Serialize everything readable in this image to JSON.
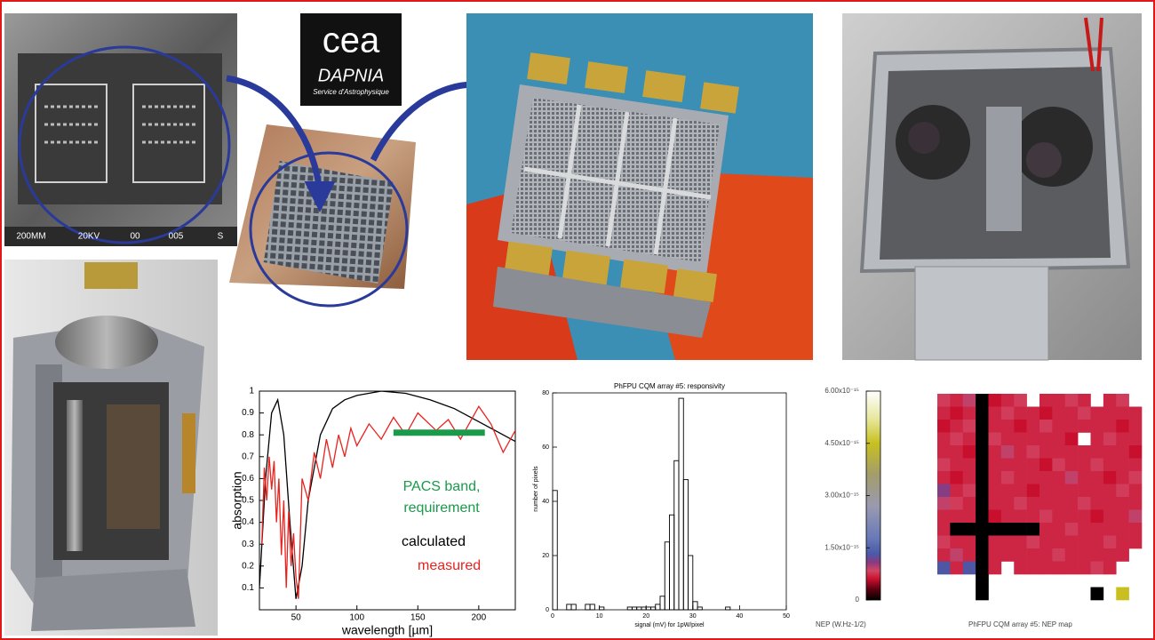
{
  "logo": {
    "mark": "cea",
    "name": "DAPNIA",
    "subtitle": "Service d'Astrophysique"
  },
  "sem_labels": [
    "200MM",
    "20KV",
    "00",
    "005",
    "S"
  ],
  "chart_data": [
    {
      "type": "line",
      "xlabel": "wavelength [µm]",
      "ylabel": "absorption",
      "xlim": [
        20,
        230
      ],
      "ylim": [
        0,
        1
      ],
      "xticks": [
        50,
        100,
        150,
        200
      ],
      "yticks": [
        0.1,
        0.2,
        0.3,
        0.4,
        0.5,
        0.6,
        0.7,
        0.8,
        0.9,
        1
      ],
      "series": [
        {
          "name": "calculated",
          "color": "#000000",
          "x": [
            20,
            25,
            30,
            35,
            40,
            45,
            50,
            55,
            60,
            70,
            80,
            90,
            100,
            120,
            140,
            160,
            180,
            200,
            220,
            230
          ],
          "values": [
            0.1,
            0.6,
            0.9,
            0.96,
            0.8,
            0.4,
            0.05,
            0.2,
            0.5,
            0.8,
            0.92,
            0.96,
            0.98,
            1,
            0.99,
            0.96,
            0.92,
            0.86,
            0.8,
            0.77
          ]
        },
        {
          "name": "measured",
          "color": "#e8231f",
          "x": [
            22,
            24,
            26,
            28,
            30,
            32,
            34,
            36,
            38,
            40,
            42,
            44,
            46,
            48,
            50,
            52,
            55,
            60,
            65,
            70,
            75,
            80,
            85,
            90,
            95,
            100,
            110,
            120,
            130,
            140,
            150,
            165,
            175,
            185,
            200,
            210,
            220,
            230
          ],
          "values": [
            0.3,
            0.65,
            0.5,
            0.7,
            0.55,
            0.68,
            0.4,
            0.6,
            0.25,
            0.5,
            0.1,
            0.45,
            0.2,
            0.35,
            0.15,
            0.05,
            0.6,
            0.5,
            0.72,
            0.6,
            0.78,
            0.65,
            0.8,
            0.7,
            0.83,
            0.75,
            0.85,
            0.78,
            0.88,
            0.8,
            0.9,
            0.82,
            0.87,
            0.78,
            0.93,
            0.85,
            0.72,
            0.82
          ]
        }
      ],
      "band": {
        "x": [
          130,
          205
        ],
        "y": 0.81,
        "color": "#1a9a4a",
        "label": [
          "PACS band,",
          "requirement"
        ]
      }
    },
    {
      "type": "histogram",
      "title": "PhFPU CQM array #5: responsivity",
      "xlabel": "signal (mV) for 1pW/pixel",
      "ylabel": "number of pixels",
      "xlim": [
        0,
        50
      ],
      "ylim": [
        0,
        80
      ],
      "xticks": [
        0,
        10,
        20,
        30,
        40,
        50
      ],
      "yticks": [
        0,
        20,
        40,
        60,
        80
      ],
      "bins": [
        0,
        1,
        2,
        3,
        4,
        5,
        6,
        7,
        8,
        9,
        10,
        11,
        12,
        13,
        14,
        15,
        16,
        17,
        18,
        19,
        20,
        21,
        22,
        23,
        24,
        25,
        26,
        27,
        28,
        29,
        30,
        31,
        32,
        33,
        34,
        35,
        36,
        37,
        38,
        39,
        40
      ],
      "counts": [
        44,
        0,
        0,
        2,
        2,
        0,
        0,
        2,
        2,
        0,
        1,
        0,
        0,
        0,
        0,
        0,
        1,
        1,
        1,
        1,
        1,
        1,
        2,
        5,
        25,
        35,
        55,
        78,
        48,
        20,
        3,
        1,
        0,
        0,
        0,
        0,
        0,
        1,
        0,
        0
      ],
      "color": "#000000"
    },
    {
      "type": "heatmap",
      "title": "PhFPU CQM array #5: NEP map",
      "colorbar_label": "NEP (W.Hz-1/2)",
      "zlim": [
        0,
        6e-15
      ],
      "zticks": [
        0,
        {
          "value": 1.5e-15,
          "label": "1.50x10⁻¹⁵"
        },
        {
          "value": 3e-15,
          "label": "3.00x10⁻¹⁵"
        },
        {
          "value": 4.5e-15,
          "label": "4.50x10⁻¹⁵"
        },
        {
          "value": 6e-15,
          "label": "6.00x10⁻¹⁵"
        }
      ],
      "values": [
        [
          8e-16,
          7e-16,
          9e-16,
          0,
          6e-16,
          7e-16,
          8e-16,
          null,
          7e-16,
          7e-16,
          8e-16,
          7e-16,
          null,
          7e-16,
          8e-16,
          null
        ],
        [
          7e-16,
          6e-16,
          7e-16,
          0,
          7e-16,
          8e-16,
          7e-16,
          7e-16,
          6e-16,
          7e-16,
          7e-16,
          8e-16,
          7e-16,
          7e-16,
          7e-16,
          7e-16
        ],
        [
          6e-16,
          7e-16,
          8e-16,
          0,
          7e-16,
          7e-16,
          6e-16,
          7e-16,
          8e-16,
          7e-16,
          7e-16,
          7e-16,
          7e-16,
          7e-16,
          6e-16,
          7e-16
        ],
        [
          7e-16,
          8e-16,
          7e-16,
          0,
          8e-16,
          7e-16,
          7e-16,
          7e-16,
          7e-16,
          7e-16,
          6e-16,
          null,
          7e-16,
          8e-16,
          7e-16,
          7e-16
        ],
        [
          7e-16,
          7e-16,
          6e-16,
          0,
          7e-16,
          9e-16,
          7e-16,
          8e-16,
          7e-16,
          7e-16,
          7e-16,
          7e-16,
          7e-16,
          7e-16,
          7e-16,
          6e-16
        ],
        [
          8e-16,
          7e-16,
          7e-16,
          0,
          7e-16,
          7e-16,
          7e-16,
          7e-16,
          6e-16,
          8e-16,
          7e-16,
          7e-16,
          8e-16,
          7e-16,
          7e-16,
          7e-16
        ],
        [
          7e-16,
          6e-16,
          7e-16,
          0,
          7e-16,
          8e-16,
          7e-16,
          7e-16,
          7e-16,
          7e-16,
          9e-16,
          7e-16,
          7e-16,
          6e-16,
          7e-16,
          8e-16
        ],
        [
          1.1e-15,
          7e-16,
          8e-16,
          0,
          7e-16,
          7e-16,
          7e-16,
          6e-16,
          7e-16,
          7e-16,
          7e-16,
          7e-16,
          7e-16,
          7e-16,
          8e-16,
          7e-16
        ],
        [
          9e-16,
          8e-16,
          7e-16,
          0,
          7e-16,
          7e-16,
          8e-16,
          7e-16,
          7e-16,
          7e-16,
          7e-16,
          8e-16,
          7e-16,
          7e-16,
          7e-16,
          7e-16
        ],
        [
          7e-16,
          7e-16,
          7e-16,
          0,
          6e-16,
          7e-16,
          7e-16,
          7e-16,
          8e-16,
          7e-16,
          7e-16,
          7e-16,
          6e-16,
          7e-16,
          7e-16,
          9e-16
        ],
        [
          7e-16,
          0,
          0,
          0,
          0,
          0,
          0,
          0,
          7e-16,
          7e-16,
          8e-16,
          7e-16,
          7e-16,
          7e-16,
          7e-16,
          7e-16
        ],
        [
          8e-16,
          7e-16,
          7e-16,
          0,
          7e-16,
          7e-16,
          7e-16,
          8e-16,
          7e-16,
          7e-16,
          7e-16,
          7e-16,
          7e-16,
          8e-16,
          7e-16,
          7e-16
        ],
        [
          7e-16,
          9e-16,
          7e-16,
          0,
          7e-16,
          7e-16,
          7e-16,
          7e-16,
          7e-16,
          8e-16,
          7e-16,
          7e-16,
          7e-16,
          7e-16,
          7e-16,
          null
        ],
        [
          1.3e-15,
          7e-16,
          1.3e-15,
          0,
          7e-16,
          null,
          7e-16,
          7e-16,
          7e-16,
          7e-16,
          7e-16,
          7e-16,
          8e-16,
          7e-16,
          null,
          null
        ],
        [
          null,
          null,
          null,
          0,
          null,
          null,
          null,
          null,
          null,
          null,
          null,
          null,
          null,
          null,
          null,
          null
        ],
        [
          null,
          null,
          null,
          0,
          null,
          null,
          null,
          null,
          null,
          null,
          null,
          null,
          0,
          null,
          4.5e-15,
          null
        ]
      ]
    }
  ]
}
